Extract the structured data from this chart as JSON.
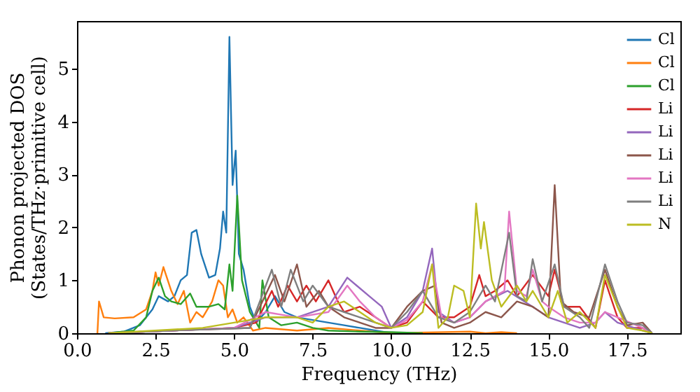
{
  "chart_data": {
    "type": "line",
    "xlabel": "Frequency (THz)",
    "ylabel": "Phonon projected DOS\n(States/THz·primitive cell)",
    "xlim": [
      0,
      19.2
    ],
    "ylim": [
      0,
      5.9
    ],
    "xticks": [
      {
        "value": 0,
        "label": "0.0"
      },
      {
        "value": 2.5,
        "label": "2.5"
      },
      {
        "value": 5,
        "label": "5.0"
      },
      {
        "value": 7.5,
        "label": "7.5"
      },
      {
        "value": 10,
        "label": "10.0"
      },
      {
        "value": 12.5,
        "label": "12.5"
      },
      {
        "value": 15,
        "label": "15.0"
      },
      {
        "value": 17.5,
        "label": "17.5"
      }
    ],
    "yticks": [
      0,
      1,
      2,
      3,
      4,
      5
    ],
    "legend": "top right",
    "grid": false,
    "series": [
      {
        "name": "Cl",
        "color": "#1f77b4",
        "x": [
          0.9,
          1.5,
          2.0,
          2.4,
          2.6,
          2.9,
          3.1,
          3.3,
          3.5,
          3.65,
          3.8,
          3.95,
          4.2,
          4.4,
          4.55,
          4.65,
          4.75,
          4.85,
          4.95,
          5.05,
          5.15,
          5.3,
          5.5,
          5.7,
          6.0,
          6.3,
          6.6,
          7.0,
          7.5,
          8.0,
          8.5,
          9.0,
          9.5,
          10.0,
          10.5
        ],
        "values": [
          0,
          0.03,
          0.15,
          0.45,
          0.7,
          0.6,
          0.7,
          1.0,
          1.1,
          1.9,
          1.95,
          1.5,
          1.05,
          1.1,
          1.6,
          2.3,
          1.9,
          5.6,
          2.8,
          3.45,
          1.5,
          1.2,
          0.5,
          0.2,
          0.4,
          0.7,
          0.4,
          0.3,
          0.25,
          0.2,
          0.15,
          0.1,
          0.05,
          0,
          0
        ]
      },
      {
        "name": "Cl",
        "color": "#ff7f0e",
        "x": [
          0.65,
          0.7,
          0.85,
          1.2,
          1.8,
          2.2,
          2.4,
          2.5,
          2.6,
          2.75,
          3.0,
          3.2,
          3.4,
          3.6,
          3.8,
          4.0,
          4.3,
          4.5,
          4.65,
          4.8,
          4.95,
          5.1,
          5.3,
          5.6,
          6.0,
          7.0,
          8.0,
          9.0,
          10.0,
          12.5,
          13.0,
          13.5,
          14.0
        ],
        "values": [
          0,
          0.6,
          0.3,
          0.28,
          0.3,
          0.45,
          0.8,
          1.15,
          0.9,
          1.25,
          0.8,
          0.55,
          0.8,
          0.2,
          0.4,
          0.3,
          0.6,
          1.0,
          0.9,
          0.3,
          0.45,
          0.2,
          0.3,
          0.05,
          0.1,
          0.05,
          0.1,
          0.05,
          0,
          0.03,
          0,
          0.02,
          0
        ]
      },
      {
        "name": "Cl",
        "color": "#2ca02c",
        "x": [
          1.0,
          1.8,
          2.2,
          2.4,
          2.6,
          2.8,
          3.0,
          3.3,
          3.6,
          3.8,
          4.2,
          4.5,
          4.7,
          4.85,
          4.95,
          5.1,
          5.25,
          5.5,
          5.8,
          5.9,
          6.1,
          6.5,
          7.0,
          7.5,
          8.0,
          9.0,
          10.0,
          11.0
        ],
        "values": [
          0,
          0.05,
          0.3,
          0.8,
          1.05,
          0.7,
          0.6,
          0.55,
          0.75,
          0.5,
          0.5,
          0.55,
          0.45,
          1.3,
          0.8,
          2.6,
          1.0,
          0.4,
          0.1,
          1.0,
          0.3,
          0.15,
          0.2,
          0.1,
          0.05,
          0.03,
          0.02,
          0
        ]
      },
      {
        "name": "Li",
        "color": "#d62728",
        "x": [
          1,
          3,
          5,
          5.7,
          6.2,
          6.4,
          6.7,
          7,
          7.3,
          7.6,
          8.0,
          8.3,
          8.5,
          9,
          9.5,
          10,
          10.5,
          11,
          11.5,
          12,
          12.5,
          12.8,
          13.0,
          13.3,
          13.7,
          14,
          14.5,
          15,
          15.2,
          15.5,
          16,
          16.5,
          16.8,
          17.2,
          17.5,
          18,
          18.3
        ],
        "values": [
          0,
          0.05,
          0.1,
          0.2,
          0.8,
          0.5,
          0.9,
          0.6,
          0.9,
          0.6,
          1.0,
          0.6,
          0.4,
          0.5,
          0.3,
          0.1,
          0.2,
          0.6,
          0.3,
          0.3,
          0.5,
          1.1,
          0.7,
          0.8,
          1.0,
          0.7,
          1.1,
          0.7,
          1.2,
          0.5,
          0.5,
          0.1,
          1.0,
          0.3,
          0.1,
          0.1,
          0
        ]
      },
      {
        "name": "Li",
        "color": "#9467bd",
        "x": [
          1,
          3,
          5,
          6,
          7,
          8,
          8.6,
          8.9,
          9.3,
          9.7,
          10,
          10.5,
          11,
          11.3,
          11.5,
          12,
          12.5,
          13,
          13.7,
          14.5,
          15,
          15.5,
          16,
          16.5,
          16.8,
          17.2,
          18,
          18.3
        ],
        "values": [
          0,
          0.05,
          0.1,
          0.3,
          0.3,
          0.5,
          1.05,
          0.9,
          0.7,
          0.5,
          0.1,
          0.3,
          0.8,
          1.6,
          0.4,
          0.2,
          0.3,
          0.6,
          0.8,
          0.5,
          0.3,
          0.2,
          0.1,
          0.2,
          0.4,
          0.2,
          0.05,
          0
        ]
      },
      {
        "name": "Li",
        "color": "#8c564b",
        "x": [
          1,
          3,
          5.5,
          6.3,
          6.6,
          7.0,
          7.3,
          7.7,
          8,
          8.5,
          9,
          9.5,
          10,
          10.5,
          11,
          11.4,
          11.6,
          12,
          12.5,
          13,
          13.5,
          14,
          14.5,
          15.0,
          15.2,
          15.4,
          15.8,
          16.3,
          16.8,
          17.2,
          17.5,
          18,
          18.3
        ],
        "values": [
          0,
          0.05,
          0.1,
          1.1,
          0.6,
          1.3,
          0.5,
          0.8,
          0.5,
          0.3,
          0.2,
          0.1,
          0.1,
          0.5,
          0.8,
          0.9,
          0.2,
          0.1,
          0.2,
          0.4,
          0.3,
          0.6,
          0.5,
          0.3,
          2.8,
          0.6,
          0.4,
          0.3,
          1.2,
          0.5,
          0.15,
          0.2,
          0
        ]
      },
      {
        "name": "Li",
        "color": "#e377c2",
        "x": [
          1,
          3,
          5,
          6,
          7,
          8,
          8.6,
          9,
          9.5,
          10,
          10.5,
          11,
          11.3,
          11.6,
          12,
          12.5,
          13,
          13.6,
          13.75,
          14,
          14.3,
          14.5,
          14.8,
          15,
          15.5,
          16,
          16.5,
          16.8,
          17.2,
          18,
          18.3
        ],
        "values": [
          0,
          0.05,
          0.1,
          0.4,
          0.3,
          0.4,
          0.9,
          0.6,
          0.3,
          0.1,
          0.25,
          0.6,
          1.3,
          0.3,
          0.2,
          0.3,
          0.6,
          0.8,
          2.3,
          0.8,
          0.7,
          1.2,
          0.6,
          0.5,
          0.3,
          0.2,
          0.2,
          0.4,
          0.3,
          0.1,
          0
        ]
      },
      {
        "name": "Li",
        "color": "#7f7f7f",
        "x": [
          1,
          3,
          5.5,
          6.2,
          6.5,
          6.8,
          7.2,
          7.5,
          8,
          8.5,
          9,
          9.5,
          10,
          10.5,
          11,
          11.5,
          12,
          12.5,
          13,
          13.3,
          13.75,
          14,
          14.3,
          14.5,
          14.8,
          15.2,
          15.5,
          16,
          16.3,
          16.8,
          17.2,
          17.5,
          18,
          18.3
        ],
        "values": [
          0,
          0.05,
          0.1,
          1.2,
          0.5,
          1.2,
          0.6,
          0.9,
          0.5,
          0.4,
          0.3,
          0.2,
          0.1,
          0.4,
          0.8,
          0.3,
          0.2,
          0.4,
          0.9,
          0.6,
          1.9,
          0.7,
          0.6,
          1.4,
          0.6,
          1.3,
          0.5,
          0.3,
          0.1,
          1.3,
          0.6,
          0.2,
          0.15,
          0
        ]
      },
      {
        "name": "N",
        "color": "#bcbd22",
        "x": [
          1,
          4,
          5,
          6,
          7,
          7.5,
          8,
          8.5,
          9,
          9.5,
          10,
          10.5,
          11,
          11.3,
          11.5,
          11.8,
          12.0,
          12.3,
          12.5,
          12.7,
          12.85,
          12.95,
          13.2,
          13.5,
          14,
          14.3,
          14.5,
          15,
          15.3,
          15.6,
          16,
          16.5,
          16.8,
          17.2,
          17.5,
          18,
          18.3
        ],
        "values": [
          0,
          0.1,
          0.2,
          0.3,
          0.3,
          0.2,
          0.5,
          0.6,
          0.4,
          0.2,
          0.1,
          0.15,
          0.4,
          1.3,
          0.1,
          0.3,
          0.9,
          0.8,
          0.3,
          2.45,
          1.6,
          2.1,
          1.0,
          0.5,
          0.9,
          0.6,
          0.8,
          0.3,
          0.8,
          0.2,
          0.4,
          0.1,
          1.1,
          0.5,
          0.1,
          0.05,
          0
        ]
      }
    ]
  }
}
